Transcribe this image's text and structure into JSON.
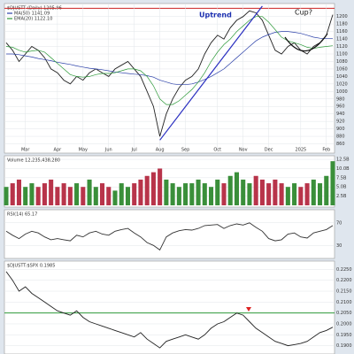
{
  "chart_data": [
    {
      "type": "line",
      "title": "$DJUSTT (Daily) 1205.96",
      "categories": [
        null,
        null,
        null,
        "Mar",
        null,
        null,
        null,
        null,
        "Apr",
        null,
        null,
        null,
        "May",
        null,
        null,
        null,
        "Jun",
        null,
        null,
        null,
        "Jul",
        null,
        null,
        null,
        "Aug",
        null,
        null,
        null,
        "Sep",
        null,
        null,
        null,
        null,
        "Oct",
        null,
        null,
        null,
        "Nov",
        null,
        null,
        null,
        "Dec",
        null,
        null,
        null,
        null,
        "2025",
        null,
        null,
        null,
        "Feb",
        null
      ],
      "series": [
        {
          "name": "$DJUSTT",
          "color": "#222222",
          "values": [
            1130,
            1110,
            1080,
            1100,
            1120,
            1110,
            1090,
            1060,
            1050,
            1030,
            1020,
            1040,
            1030,
            1050,
            1060,
            1050,
            1040,
            1060,
            1070,
            1080,
            1060,
            1040,
            1000,
            960,
            880,
            940,
            980,
            1010,
            1030,
            1040,
            1060,
            1100,
            1130,
            1150,
            1140,
            1170,
            1190,
            1200,
            1215,
            1210,
            1190,
            1150,
            1110,
            1100,
            1120,
            1130,
            1110,
            1100,
            1120,
            1130,
            1150,
            1205
          ]
        },
        {
          "name": "MA(50) 1141.09",
          "color": "#2a3fa8",
          "values": [
            1100,
            1100,
            1098,
            1095,
            1092,
            1088,
            1085,
            1082,
            1078,
            1075,
            1072,
            1068,
            1065,
            1062,
            1060,
            1058,
            1055,
            1052,
            1050,
            1048,
            1046,
            1045,
            1042,
            1038,
            1030,
            1025,
            1020,
            1018,
            1018,
            1020,
            1025,
            1032,
            1040,
            1050,
            1060,
            1075,
            1090,
            1105,
            1120,
            1135,
            1145,
            1152,
            1158,
            1160,
            1160,
            1158,
            1155,
            1150,
            1145,
            1142,
            1141,
            1141
          ]
        },
        {
          "name": "EMA(20) 1122.10",
          "color": "#2e9a3a",
          "values": [
            1120,
            1118,
            1110,
            1105,
            1108,
            1110,
            1105,
            1090,
            1075,
            1060,
            1045,
            1040,
            1038,
            1040,
            1045,
            1048,
            1048,
            1050,
            1055,
            1060,
            1060,
            1055,
            1040,
            1015,
            980,
            965,
            965,
            975,
            990,
            1005,
            1025,
            1050,
            1080,
            1105,
            1125,
            1140,
            1160,
            1175,
            1190,
            1200,
            1200,
            1185,
            1165,
            1145,
            1135,
            1130,
            1125,
            1118,
            1115,
            1118,
            1120,
            1122
          ]
        }
      ],
      "ylim": [
        840,
        1230
      ],
      "yticks": [
        860,
        880,
        900,
        920,
        940,
        960,
        980,
        1000,
        1020,
        1040,
        1060,
        1080,
        1100,
        1120,
        1140,
        1160,
        1180,
        1200
      ],
      "hline": {
        "value": 1222,
        "color": "#cc2222"
      },
      "trendline": {
        "from": [
          24,
          870
        ],
        "to": [
          40,
          1228
        ],
        "color": "#2a2fc0"
      },
      "annotations": [
        "Uptrend",
        "Cup?"
      ]
    },
    {
      "type": "bar",
      "title": "Volume 12,235,438,280",
      "up_color": "#3a8f3a",
      "down_color": "#b8344a",
      "values": [
        5,
        6,
        7,
        5,
        6,
        5,
        6,
        7,
        5,
        6,
        5,
        6,
        5,
        7,
        5,
        6,
        5,
        4,
        6,
        5,
        6,
        7,
        8,
        9,
        10,
        7,
        6,
        5,
        6,
        6,
        7,
        6,
        5,
        7,
        6,
        8,
        9,
        7,
        6,
        8,
        7,
        6,
        7,
        6,
        5,
        6,
        5,
        6,
        7,
        6,
        8,
        12
      ],
      "ylim": [
        0,
        13
      ],
      "yticks": [
        {
          "value": 2.5,
          "label": "2.5B"
        },
        {
          "value": 5,
          "label": "5.0B"
        },
        {
          "value": 7.5,
          "label": "7.5B"
        },
        {
          "value": 10,
          "label": "10.0B"
        },
        {
          "value": 12.5,
          "label": "12.5B"
        }
      ]
    },
    {
      "type": "line",
      "title": "RSI(14) 65.17",
      "series": [
        {
          "name": "RSI",
          "color": "#333333",
          "values": [
            55,
            48,
            42,
            50,
            55,
            52,
            45,
            40,
            42,
            40,
            38,
            48,
            45,
            52,
            55,
            50,
            48,
            55,
            58,
            60,
            52,
            45,
            35,
            30,
            22,
            45,
            52,
            56,
            58,
            57,
            60,
            65,
            66,
            67,
            60,
            65,
            68,
            66,
            70,
            62,
            55,
            42,
            38,
            40,
            50,
            52,
            45,
            43,
            52,
            55,
            58,
            65
          ]
        }
      ],
      "ylim": [
        10,
        90
      ],
      "yticks": [
        30,
        70
      ]
    },
    {
      "type": "line",
      "title": "$DJUSTT:$SPX 0.1985",
      "series": [
        {
          "name": "Ratio",
          "color": "#222222",
          "values": [
            0.224,
            0.22,
            0.215,
            0.217,
            0.214,
            0.212,
            0.21,
            0.208,
            0.206,
            0.205,
            0.204,
            0.206,
            0.203,
            0.201,
            0.2,
            0.199,
            0.198,
            0.197,
            0.196,
            0.195,
            0.194,
            0.196,
            0.193,
            0.191,
            0.189,
            0.192,
            0.193,
            0.194,
            0.195,
            0.194,
            0.193,
            0.195,
            0.198,
            0.2,
            0.201,
            0.203,
            0.205,
            0.204,
            0.201,
            0.198,
            0.196,
            0.194,
            0.192,
            0.191,
            0.19,
            0.1905,
            0.191,
            0.192,
            0.194,
            0.196,
            0.197,
            0.1985
          ]
        }
      ],
      "ylim": [
        0.187,
        0.228
      ],
      "yticks": [
        {
          "value": 0.19,
          "label": "0.1900"
        },
        {
          "value": 0.195,
          "label": "0.1950"
        },
        {
          "value": 0.2,
          "label": "0.2000"
        },
        {
          "value": 0.205,
          "label": "0.2050"
        },
        {
          "value": 0.21,
          "label": "0.2100"
        },
        {
          "value": 0.215,
          "label": "0.2150"
        },
        {
          "value": 0.22,
          "label": "0.2200"
        },
        {
          "value": 0.225,
          "label": "0.2250"
        }
      ],
      "hline": {
        "value": 0.205,
        "color": "#2e9a3a"
      }
    }
  ]
}
